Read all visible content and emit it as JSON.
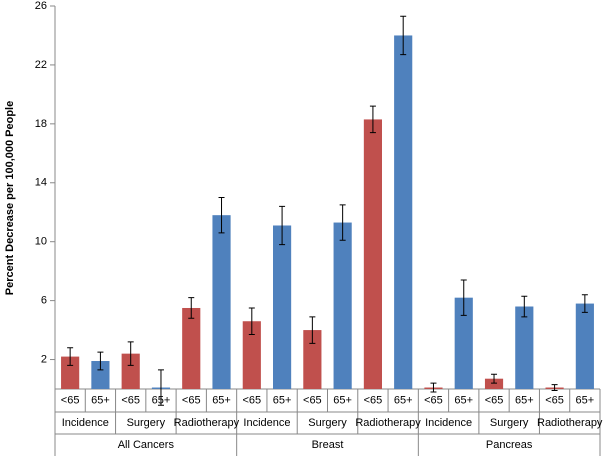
{
  "chart_data": {
    "type": "bar",
    "y_label": "Percent Decrease per 100,000 People",
    "categories": [
      "<65",
      "65+",
      "<65",
      "65+",
      "<65",
      "65+",
      "<65",
      "65+",
      "<65",
      "65+",
      "<65",
      "65+",
      "<65",
      "65+",
      "<65",
      "65+",
      "<65",
      "65+"
    ],
    "subgroups": [
      "Incidence",
      "Surgery",
      "Radiotherapy",
      "Incidence",
      "Surgery",
      "Radiotherapy",
      "Incidence",
      "Surgery",
      "Radiotherapy"
    ],
    "groups": [
      "All Cancers",
      "Breast",
      "Pancreas"
    ],
    "values": [
      2.2,
      1.9,
      2.4,
      0.1,
      5.5,
      11.8,
      4.6,
      11.1,
      4.0,
      11.3,
      18.3,
      24.0,
      0.1,
      6.2,
      0.7,
      5.6,
      0.1,
      5.8
    ],
    "errors": [
      0.6,
      0.6,
      0.8,
      1.2,
      0.7,
      1.2,
      0.9,
      1.3,
      0.9,
      1.2,
      0.9,
      1.3,
      0.3,
      1.2,
      0.3,
      0.7,
      0.2,
      0.6
    ],
    "colors": [
      "#c0504d",
      "#4f81bd",
      "#c0504d",
      "#4f81bd",
      "#c0504d",
      "#4f81bd",
      "#c0504d",
      "#4f81bd",
      "#c0504d",
      "#4f81bd",
      "#c0504d",
      "#4f81bd",
      "#c0504d",
      "#4f81bd",
      "#c0504d",
      "#4f81bd",
      "#c0504d",
      "#4f81bd"
    ],
    "ylim": [
      0,
      26
    ],
    "yticks": [
      2,
      6,
      10,
      14,
      18,
      22,
      26
    ],
    "grid": false
  }
}
